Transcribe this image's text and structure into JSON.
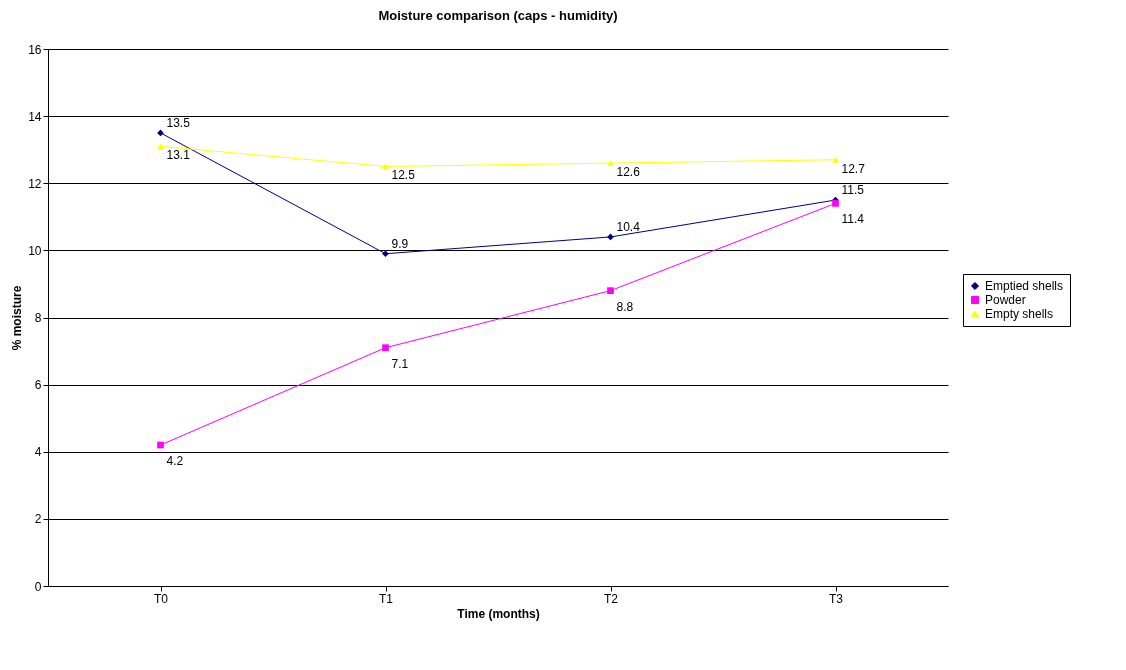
{
  "chart_data": {
    "type": "line",
    "title": "Moisture comparison (caps - humidity)",
    "xlabel": "Time (months)",
    "ylabel": "% moisture",
    "categories": [
      "T0",
      "T1",
      "T2",
      "T3"
    ],
    "series": [
      {
        "name": "Emptied shells",
        "color": "#000080",
        "marker": "diamond",
        "values": [
          13.5,
          9.9,
          10.4,
          11.5
        ]
      },
      {
        "name": "Powder",
        "color": "#ff00ff",
        "marker": "square",
        "values": [
          4.2,
          7.1,
          8.8,
          11.4
        ]
      },
      {
        "name": "Empty shells",
        "color": "#ffff00",
        "marker": "triangle",
        "values": [
          13.1,
          12.5,
          12.6,
          12.7
        ]
      }
    ],
    "ylim": [
      0,
      16
    ],
    "yticks": [
      0,
      2,
      4,
      6,
      8,
      10,
      12,
      14,
      16
    ],
    "grid": "y",
    "legend": "right",
    "data_labels": true
  }
}
